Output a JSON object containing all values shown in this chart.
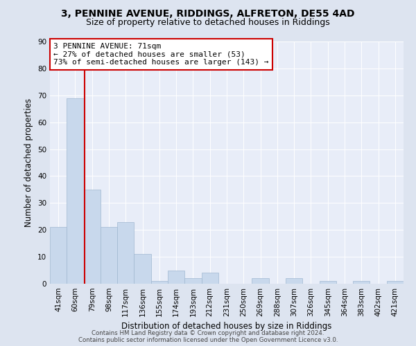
{
  "title1": "3, PENNINE AVENUE, RIDDINGS, ALFRETON, DE55 4AD",
  "title2": "Size of property relative to detached houses in Riddings",
  "xlabel": "Distribution of detached houses by size in Riddings",
  "ylabel": "Number of detached properties",
  "categories": [
    "41sqm",
    "60sqm",
    "79sqm",
    "98sqm",
    "117sqm",
    "136sqm",
    "155sqm",
    "174sqm",
    "193sqm",
    "212sqm",
    "231sqm",
    "250sqm",
    "269sqm",
    "288sqm",
    "307sqm",
    "326sqm",
    "345sqm",
    "364sqm",
    "383sqm",
    "402sqm",
    "421sqm"
  ],
  "values": [
    21,
    69,
    35,
    21,
    23,
    11,
    1,
    5,
    2,
    4,
    0,
    0,
    2,
    0,
    2,
    0,
    1,
    0,
    1,
    0,
    1
  ],
  "bar_color": "#c8d8ec",
  "bar_edge_color": "#a0b8d0",
  "annotation_line1": "3 PENNINE AVENUE: 71sqm",
  "annotation_line2": "← 27% of detached houses are smaller (53)",
  "annotation_line3": "73% of semi-detached houses are larger (143) →",
  "annotation_box_color": "white",
  "annotation_box_edge_color": "#cc0000",
  "vline_color": "#cc0000",
  "ylim": [
    0,
    90
  ],
  "yticks": [
    0,
    10,
    20,
    30,
    40,
    50,
    60,
    70,
    80,
    90
  ],
  "background_color": "#dde4f0",
  "plot_background_color": "#e8edf8",
  "footer_text": "Contains HM Land Registry data © Crown copyright and database right 2024.\nContains public sector information licensed under the Open Government Licence v3.0.",
  "title1_fontsize": 10,
  "title2_fontsize": 9,
  "xlabel_fontsize": 8.5,
  "ylabel_fontsize": 8.5,
  "tick_fontsize": 7.5,
  "annotation_fontsize": 8
}
